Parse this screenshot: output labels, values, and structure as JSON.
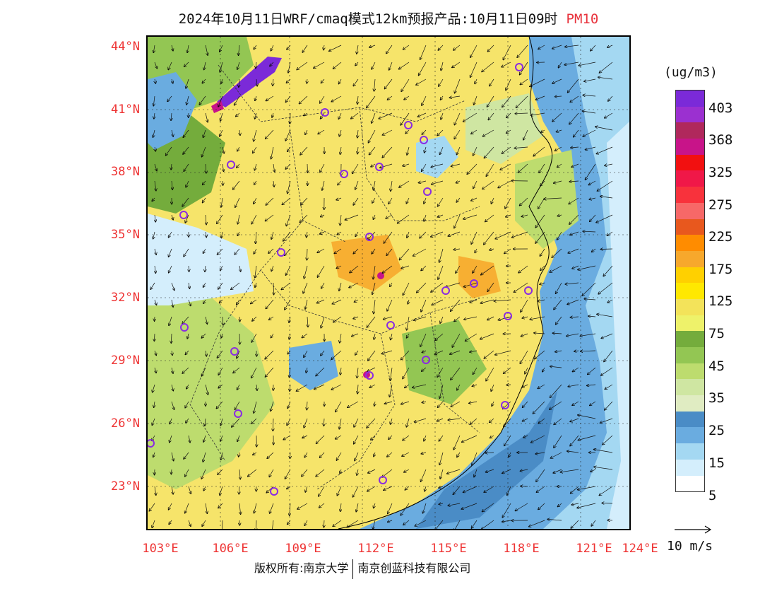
{
  "title": "2024年10月11日WRF/cmaq模式12km预报产品:10月11日09时",
  "species": "PM10",
  "latitudes": [
    "44°N",
    "41°N",
    "38°N",
    "35°N",
    "32°N",
    "29°N",
    "26°N",
    "23°N"
  ],
  "longitudes": [
    "103°E",
    "106°E",
    "109°E",
    "112°E",
    "115°E",
    "118°E",
    "121°E",
    "124°E"
  ],
  "legend": {
    "unit": "(ug/m3)",
    "labels": [
      "403",
      "368",
      "325",
      "275",
      "225",
      "175",
      "125",
      "75",
      "45",
      "35",
      "25",
      "15",
      "5"
    ],
    "colors": [
      "#7b2ad8",
      "#9b30d0",
      "#b0285c",
      "#c81489",
      "#f21010",
      "#f01848",
      "#f8323c",
      "#f76868",
      "#e8581e",
      "#ff8c00",
      "#f7a82c",
      "#ffd000",
      "#ffe800",
      "#f3e35a",
      "#eef26a",
      "#74ac3c",
      "#93c653",
      "#bddc6e",
      "#cfe6a2",
      "#e0ecc2",
      "#4a8cc6",
      "#6aace0",
      "#a4d8f2",
      "#d4eefc",
      "#ffffff"
    ]
  },
  "wind_reference": "10 m/s",
  "copyright": {
    "left": "版权所有:南京大学",
    "right": "南京创蓝科技有限公司"
  }
}
